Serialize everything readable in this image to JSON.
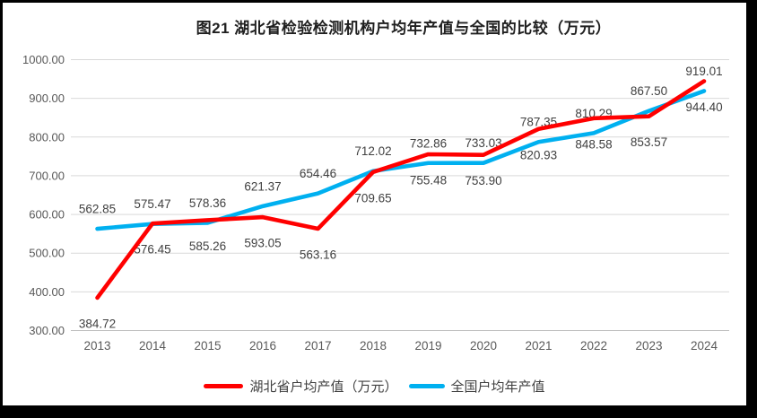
{
  "title": "图21 湖北省检验检测机构户均年产值与全国的比较（万元）",
  "chart_data": {
    "type": "line",
    "categories": [
      "2013",
      "2014",
      "2015",
      "2016",
      "2017",
      "2018",
      "2019",
      "2020",
      "2021",
      "2022",
      "2023",
      "2024"
    ],
    "series": [
      {
        "id": "hubei",
        "name": "湖北省户均产值（万元）",
        "color": "#FF0000",
        "label_position": "below",
        "values": [
          384.72,
          576.45,
          585.26,
          593.05,
          563.16,
          709.65,
          755.48,
          753.9,
          820.93,
          848.58,
          853.57,
          944.4
        ]
      },
      {
        "id": "national",
        "name": "全国户均年产值",
        "color": "#00B0F0",
        "label_position": "above",
        "values": [
          562.85,
          575.47,
          578.36,
          621.37,
          654.46,
          712.02,
          732.86,
          733.03,
          787.35,
          810.29,
          867.5,
          919.01
        ]
      }
    ],
    "ylim": [
      300,
      1000
    ],
    "yticks": [
      1000,
      900,
      800,
      700,
      600,
      500,
      400,
      300
    ],
    "ytick_labels": [
      "1000.00",
      "900.00",
      "800.00",
      "700.00",
      "600.00",
      "500.00",
      "400.00",
      "300.00"
    ],
    "grid": true,
    "legend_position": "bottom",
    "value_decimals": 2
  },
  "styles": {
    "background": "#FFFFFF",
    "frame_color": "#000000",
    "title_color": "#1F1F1F",
    "axis_text_color": "#595959",
    "data_label_color": "#404040",
    "grid_color": "#D9D9D9",
    "baseline_color": "#BFBFBF"
  }
}
